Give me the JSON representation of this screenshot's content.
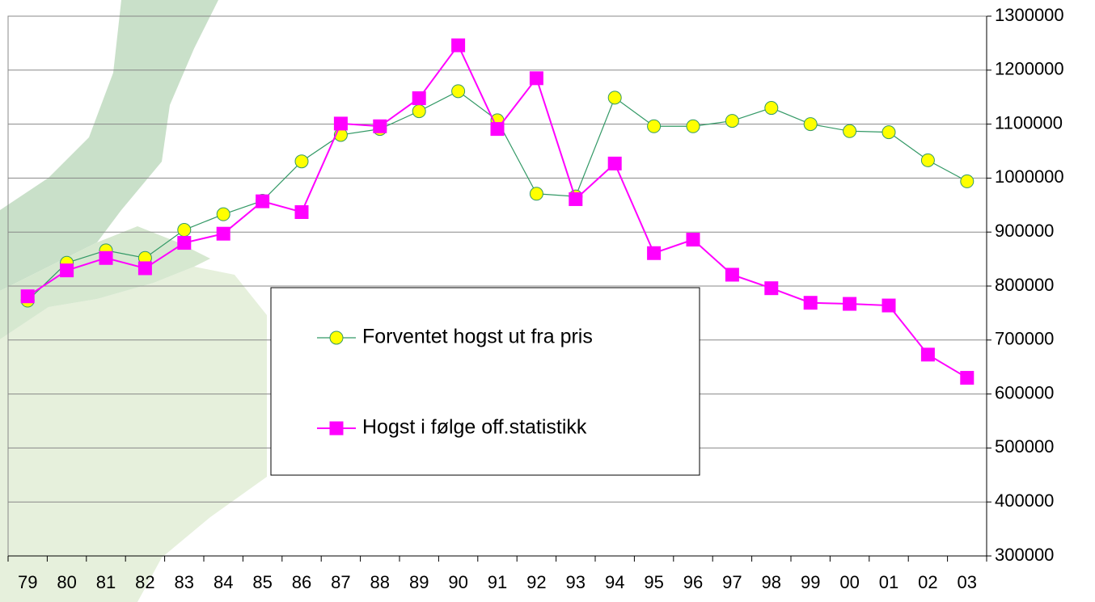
{
  "chart_data": {
    "type": "line",
    "categories": [
      "79",
      "80",
      "81",
      "82",
      "83",
      "84",
      "85",
      "86",
      "87",
      "88",
      "89",
      "90",
      "91",
      "92",
      "93",
      "94",
      "95",
      "96",
      "97",
      "98",
      "99",
      "00",
      "01",
      "02",
      "03"
    ],
    "series": [
      {
        "name": "Forventet hogst ut fra pris",
        "color": "#339966",
        "marker": "circle",
        "marker_color": "#ffff00",
        "values": [
          773000,
          843000,
          866000,
          852000,
          904000,
          933000,
          958000,
          1031000,
          1080000,
          1091000,
          1124000,
          1161000,
          1107000,
          971000,
          966000,
          1149000,
          1096000,
          1096000,
          1106000,
          1130000,
          1100000,
          1087000,
          1085000,
          1033000,
          994000
        ]
      },
      {
        "name": "Hogst i følge off.statistikk",
        "color": "#ff00ff",
        "marker": "square",
        "marker_color": "#ff00ff",
        "values": [
          781000,
          829000,
          852000,
          833000,
          880000,
          897000,
          957000,
          937000,
          1101000,
          1096000,
          1148000,
          1246000,
          1091000,
          1185000,
          961000,
          1027000,
          861000,
          886000,
          821000,
          796000,
          769000,
          767000,
          764000,
          673000,
          630000
        ]
      }
    ],
    "ylim": [
      300000,
      1300000
    ],
    "yticks": [
      300000,
      400000,
      500000,
      600000,
      700000,
      800000,
      900000,
      1000000,
      1100000,
      1200000,
      1300000
    ],
    "y_axis_side": "right",
    "grid": true
  }
}
